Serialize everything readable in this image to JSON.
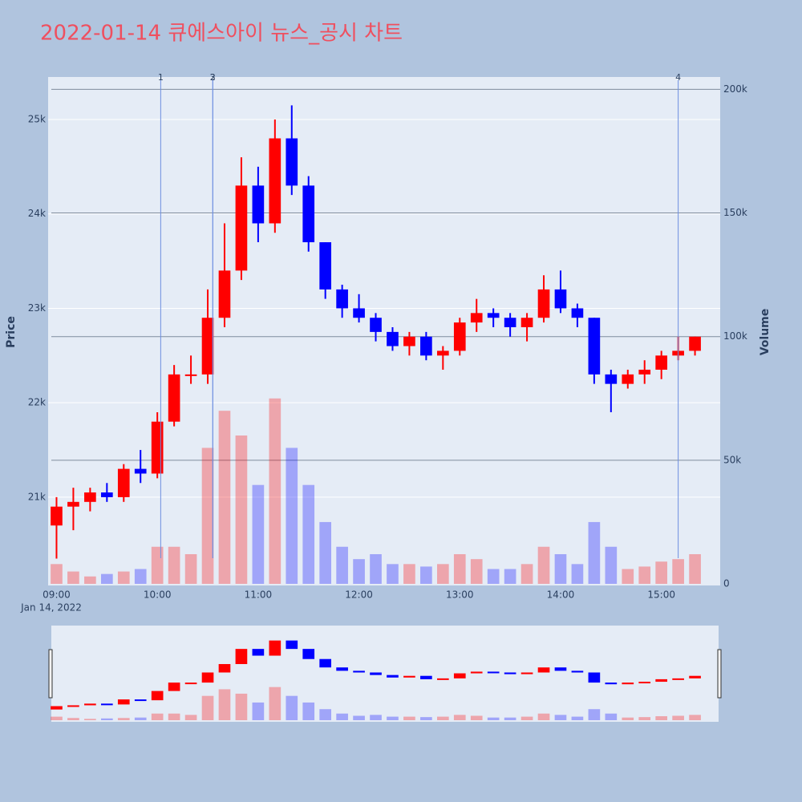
{
  "chart_data": {
    "type": "candlestick",
    "title": "2022-01-14 큐에스아이 뉴스_공시 차트",
    "y_label": "Price",
    "y2_label": "Volume",
    "x_date_label": "Jan 14, 2022",
    "increasing_color": "#ff0000",
    "decreasing_color": "#0000ff",
    "x": [
      "2022-01-14 09:00",
      "2022-01-14 09:10",
      "2022-01-14 09:20",
      "2022-01-14 09:30",
      "2022-01-14 09:40",
      "2022-01-14 09:50",
      "2022-01-14 10:00",
      "2022-01-14 10:10",
      "2022-01-14 10:20",
      "2022-01-14 10:30",
      "2022-01-14 10:40",
      "2022-01-14 10:50",
      "2022-01-14 11:00",
      "2022-01-14 11:10",
      "2022-01-14 11:20",
      "2022-01-14 11:30",
      "2022-01-14 11:40",
      "2022-01-14 11:50",
      "2022-01-14 12:00",
      "2022-01-14 12:10",
      "2022-01-14 12:20",
      "2022-01-14 12:30",
      "2022-01-14 12:40",
      "2022-01-14 12:50",
      "2022-01-14 13:00",
      "2022-01-14 13:10",
      "2022-01-14 13:20",
      "2022-01-14 13:30",
      "2022-01-14 13:40",
      "2022-01-14 13:50",
      "2022-01-14 14:00",
      "2022-01-14 14:10",
      "2022-01-14 14:20",
      "2022-01-14 14:30",
      "2022-01-14 14:40",
      "2022-01-14 14:50",
      "2022-01-14 15:00",
      "2022-01-14 15:10",
      "2022-01-14 15:20"
    ],
    "open": [
      20700,
      20900,
      20950,
      21050,
      21000,
      21300,
      21250,
      21800,
      22300,
      22300,
      22900,
      23400,
      24300,
      23900,
      24800,
      24300,
      23700,
      23200,
      23000,
      22900,
      22750,
      22600,
      22700,
      22500,
      22550,
      22850,
      22950,
      22900,
      22800,
      22900,
      23200,
      23000,
      22900,
      22300,
      22200,
      22300,
      22350,
      22500,
      22550
    ],
    "high": [
      21000,
      21100,
      21100,
      21150,
      21350,
      21500,
      21900,
      22400,
      22500,
      23200,
      23900,
      24600,
      24500,
      25000,
      25150,
      24400,
      23700,
      23250,
      23150,
      22950,
      22800,
      22750,
      22750,
      22600,
      22900,
      23100,
      23000,
      22950,
      22950,
      23350,
      23400,
      23050,
      22900,
      22350,
      22350,
      22450,
      22550,
      22700,
      22700
    ],
    "low": [
      20350,
      20650,
      20850,
      20950,
      20950,
      21150,
      21200,
      21750,
      22200,
      22200,
      22800,
      23300,
      23700,
      23800,
      24200,
      23600,
      23100,
      22900,
      22850,
      22650,
      22550,
      22500,
      22450,
      22350,
      22500,
      22750,
      22800,
      22700,
      22650,
      22850,
      22950,
      22800,
      22200,
      21900,
      22150,
      22200,
      22250,
      22450,
      22500
    ],
    "close": [
      20900,
      20950,
      21050,
      21000,
      21300,
      21250,
      21800,
      22300,
      22300,
      22900,
      23400,
      24300,
      23900,
      24800,
      24300,
      23700,
      23200,
      23000,
      22900,
      22750,
      22600,
      22700,
      22500,
      22550,
      22850,
      22950,
      22900,
      22800,
      22900,
      23200,
      23000,
      22900,
      22300,
      22200,
      22300,
      22350,
      22500,
      22550,
      22700
    ],
    "volume": [
      8000,
      5000,
      3000,
      4000,
      5000,
      6000,
      15000,
      15000,
      12000,
      55000,
      70000,
      60000,
      40000,
      75000,
      55000,
      40000,
      25000,
      15000,
      10000,
      12000,
      8000,
      8000,
      7000,
      8000,
      12000,
      10000,
      6000,
      6000,
      8000,
      15000,
      12000,
      8000,
      25000,
      15000,
      6000,
      7000,
      9000,
      10000,
      12000
    ],
    "xlim": [
      "2022-01-14 08:55",
      "2022-01-14 15:35"
    ],
    "xticks": [
      {
        "value": "2022-01-14 09:00",
        "label": "09:00"
      },
      {
        "value": "2022-01-14 10:00",
        "label": "10:00"
      },
      {
        "value": "2022-01-14 11:00",
        "label": "11:00"
      },
      {
        "value": "2022-01-14 12:00",
        "label": "12:00"
      },
      {
        "value": "2022-01-14 13:00",
        "label": "13:00"
      },
      {
        "value": "2022-01-14 14:00",
        "label": "14:00"
      },
      {
        "value": "2022-01-14 15:00",
        "label": "15:00"
      }
    ],
    "ylim": [
      20065,
      25450
    ],
    "yticks": [
      {
        "value": 21000,
        "label": "21k"
      },
      {
        "value": 22000,
        "label": "22k"
      },
      {
        "value": 23000,
        "label": "23k"
      },
      {
        "value": 24000,
        "label": "24k"
      },
      {
        "value": 25000,
        "label": "25k"
      }
    ],
    "y2lim": [
      0,
      205000
    ],
    "y2ticks": [
      0,
      {
        "value": 50000,
        "label": "50k"
      },
      {
        "value": 100000,
        "label": "100k"
      },
      {
        "value": 150000,
        "label": "150k"
      },
      {
        "value": 200000,
        "label": "200k"
      }
    ],
    "events": [
      {
        "label": "1",
        "x": "2022-01-14 10:02"
      },
      {
        "label": "2",
        "x": "2022-01-14 10:33"
      },
      {
        "label": "3",
        "x": "2022-01-14 10:33"
      },
      {
        "label": "4",
        "x": "2022-01-14 15:10"
      }
    ],
    "grid": true
  }
}
